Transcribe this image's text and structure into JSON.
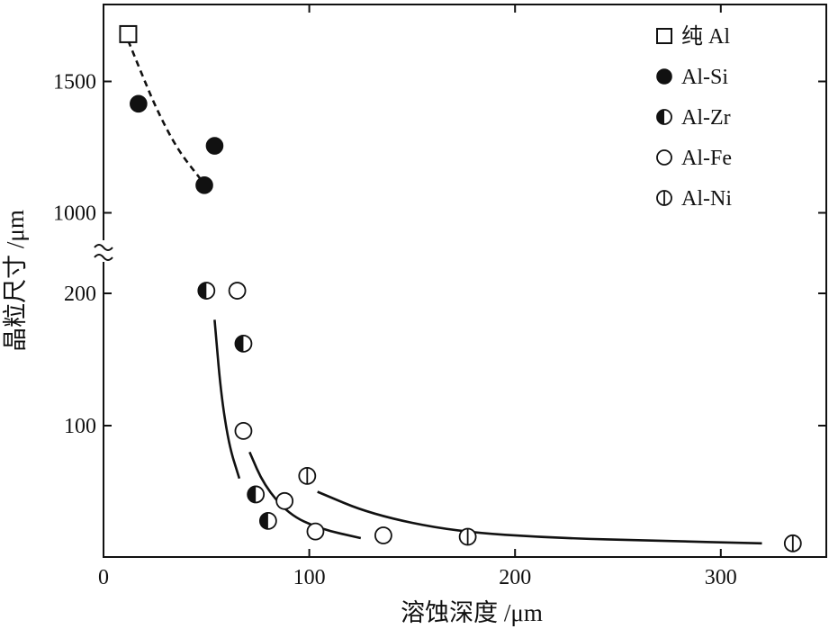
{
  "chart_data": {
    "type": "scatter",
    "xlabel": "溶蚀深度 /μm",
    "ylabel": "晶粒尺寸 /μm",
    "xlim": [
      0,
      350
    ],
    "ylim_lower": [
      0,
      250
    ],
    "ylim_upper": [
      850,
      1750
    ],
    "axis_break": "≈",
    "x_ticks": [
      0,
      100,
      200,
      300
    ],
    "x_tick_labels": [
      "0",
      "100",
      "200",
      "300"
    ],
    "y_ticks_upper": [
      1000,
      1500
    ],
    "y_tick_labels_upper": [
      "1000",
      "1500"
    ],
    "y_ticks_lower": [
      100,
      200
    ],
    "y_tick_labels_lower": [
      "100",
      "200"
    ],
    "grid": false,
    "legend_position": "top-right",
    "series": [
      {
        "name": "纯 Al",
        "marker": "open-square",
        "points": [
          [
            12,
            1680
          ]
        ]
      },
      {
        "name": "Al-Si",
        "marker": "filled-circle",
        "points": [
          [
            17,
            1415
          ],
          [
            49,
            1105
          ],
          [
            54,
            1255
          ]
        ]
      },
      {
        "name": "Al-Zr",
        "marker": "half-filled-circle",
        "points": [
          [
            50,
            202
          ],
          [
            68,
            162
          ],
          [
            74,
            48
          ],
          [
            80,
            28
          ]
        ]
      },
      {
        "name": "Al-Fe",
        "marker": "open-circle",
        "points": [
          [
            65,
            202
          ],
          [
            68,
            96
          ],
          [
            88,
            43
          ],
          [
            103,
            20
          ],
          [
            136,
            17
          ]
        ]
      },
      {
        "name": "Al-Ni",
        "marker": "vertical-bar-circle",
        "points": [
          [
            99,
            62
          ],
          [
            177,
            16
          ],
          [
            335,
            11
          ]
        ]
      }
    ],
    "curves": [
      {
        "style": "dashed",
        "points": [
          [
            12,
            1655
          ],
          [
            18,
            1540
          ],
          [
            26,
            1390
          ],
          [
            36,
            1240
          ],
          [
            47,
            1130
          ]
        ]
      },
      {
        "style": "solid",
        "points": [
          [
            54,
            180
          ],
          [
            57,
            125
          ],
          [
            61,
            85
          ],
          [
            66,
            60
          ]
        ]
      },
      {
        "style": "solid",
        "points": [
          [
            71,
            80
          ],
          [
            78,
            55
          ],
          [
            90,
            33
          ],
          [
            105,
            22
          ],
          [
            125,
            15
          ]
        ]
      },
      {
        "style": "solid",
        "points": [
          [
            104,
            50
          ],
          [
            130,
            33
          ],
          [
            170,
            20
          ],
          [
            220,
            15
          ],
          [
            270,
            13
          ],
          [
            320,
            11
          ]
        ]
      }
    ]
  }
}
